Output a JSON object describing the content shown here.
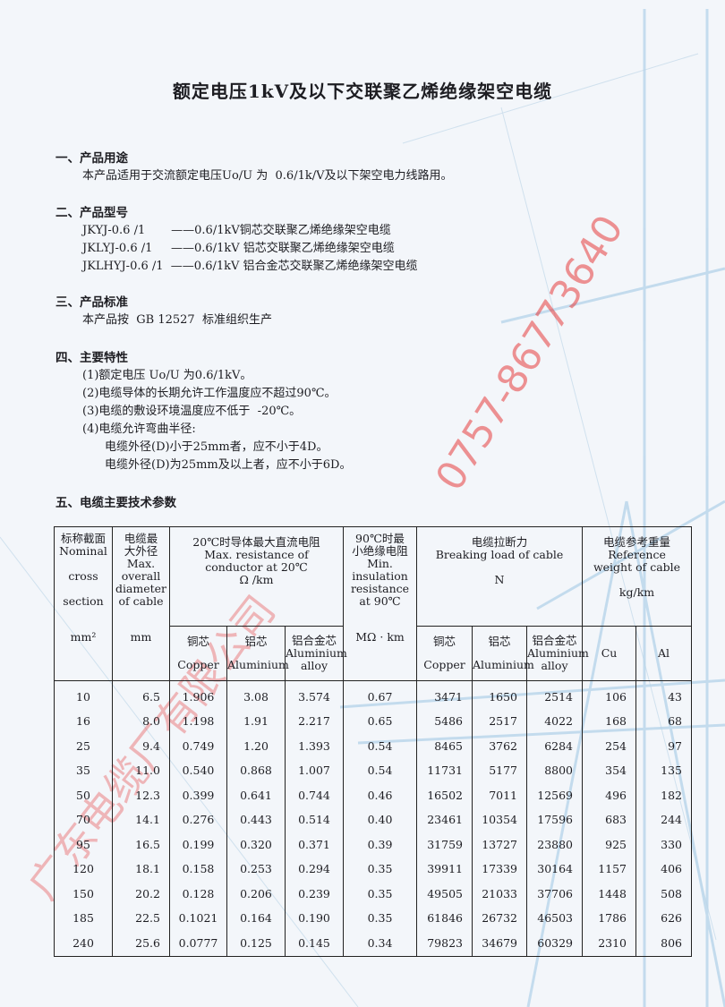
{
  "title": "额定电压1kV及以下交联聚乙烯绝缘架空电缆",
  "watermarks": {
    "phone": "0757-86773640",
    "company": "广东电缆厂有限公司"
  },
  "sections": {
    "usage": {
      "heading": "一、产品用途",
      "text": "本产品适用于交流额定电压Uo/U 为  0.6/1k/V及以下架空电力线路用。"
    },
    "models": {
      "heading": "二、产品型号",
      "items": [
        "JKYJ-0.6 /1       ——0.6/1kV铜芯交联聚乙烯绝缘架空电缆",
        "JKLYJ-0.6 /1     ——0.6/1kV 铝芯交联聚乙烯绝缘架空电缆",
        "JKLHYJ-0.6 /1  ——0.6/1kV 铝合金芯交联聚乙烯绝缘架空电缆"
      ]
    },
    "standard": {
      "heading": "三、产品标准",
      "text": "本产品按  GB 12527  标准组织生产"
    },
    "features": {
      "heading": "四、主要特性",
      "items": [
        "(1)额定电压 Uo/U 为0.6/1kV。",
        "(2)电缆导体的长期允许工作温度应不超过90℃。",
        "(3)电缆的敷设环境温度应不低于  -20℃。",
        "(4)电缆允许弯曲半径:"
      ],
      "subitems": [
        "电缆外径(D)小于25mm者，应不小于4D。",
        "电缆外径(D)为25mm及以上者，应不小于6D。"
      ]
    },
    "params": {
      "heading": "五、电缆主要技术参数"
    }
  },
  "table": {
    "headers": {
      "section": [
        "标称截面",
        "Nominal",
        "cross",
        "section",
        "mm²"
      ],
      "diameter": [
        "电缆最",
        "大外径",
        "Max.",
        "overall",
        "diameter",
        "of cable",
        "mm"
      ],
      "resistance": [
        "20℃时导体最大直流电阻",
        "Max. resistance of",
        "conductor at 20℃",
        "Ω /km"
      ],
      "insulation": [
        "90℃时最",
        "小绝缘电阻",
        "Min.",
        "insulation",
        "resistance",
        "at 90℃",
        "MΩ · km"
      ],
      "breaking": [
        "电缆拉断力",
        "Breaking load of cable",
        "N"
      ],
      "weight": [
        "电缆参考重量",
        "Reference",
        "weight of cable",
        "kg/km"
      ],
      "copper": [
        "铜芯",
        "Copper"
      ],
      "aluminium": [
        "铝芯",
        "Aluminium"
      ],
      "alloy": [
        "铝合金芯",
        "Aluminium",
        "alloy"
      ],
      "cu": "Cu",
      "al": "Al"
    },
    "rows": [
      [
        "10",
        "6.5",
        "1.906",
        "3.08",
        "3.574",
        "0.67",
        "3471",
        "1650",
        "2514",
        "106",
        "43"
      ],
      [
        "16",
        "8.0",
        "1.198",
        "1.91",
        "2.217",
        "0.65",
        "5486",
        "2517",
        "4022",
        "168",
        "68"
      ],
      [
        "25",
        "9.4",
        "0.749",
        "1.20",
        "1.393",
        "0.54",
        "8465",
        "3762",
        "6284",
        "254",
        "97"
      ],
      [
        "35",
        "11.0",
        "0.540",
        "0.868",
        "1.007",
        "0.54",
        "11731",
        "5177",
        "8800",
        "354",
        "135"
      ],
      [
        "50",
        "12.3",
        "0.399",
        "0.641",
        "0.744",
        "0.46",
        "16502",
        "7011",
        "12569",
        "496",
        "182"
      ],
      [
        "70",
        "14.1",
        "0.276",
        "0.443",
        "0.514",
        "0.40",
        "23461",
        "10354",
        "17596",
        "683",
        "244"
      ],
      [
        "95",
        "16.5",
        "0.199",
        "0.320",
        "0.371",
        "0.39",
        "31759",
        "13727",
        "23880",
        "925",
        "330"
      ],
      [
        "120",
        "18.1",
        "0.158",
        "0.253",
        "0.294",
        "0.35",
        "39911",
        "17339",
        "30164",
        "1157",
        "406"
      ],
      [
        "150",
        "20.2",
        "0.128",
        "0.206",
        "0.239",
        "0.35",
        "49505",
        "21033",
        "37706",
        "1448",
        "508"
      ],
      [
        "185",
        "22.5",
        "0.1021",
        "0.164",
        "0.190",
        "0.35",
        "61846",
        "26732",
        "46503",
        "1786",
        "626"
      ],
      [
        "240",
        "25.6",
        "0.0777",
        "0.125",
        "0.145",
        "0.34",
        "79823",
        "34679",
        "60329",
        "2310",
        "806"
      ]
    ]
  }
}
